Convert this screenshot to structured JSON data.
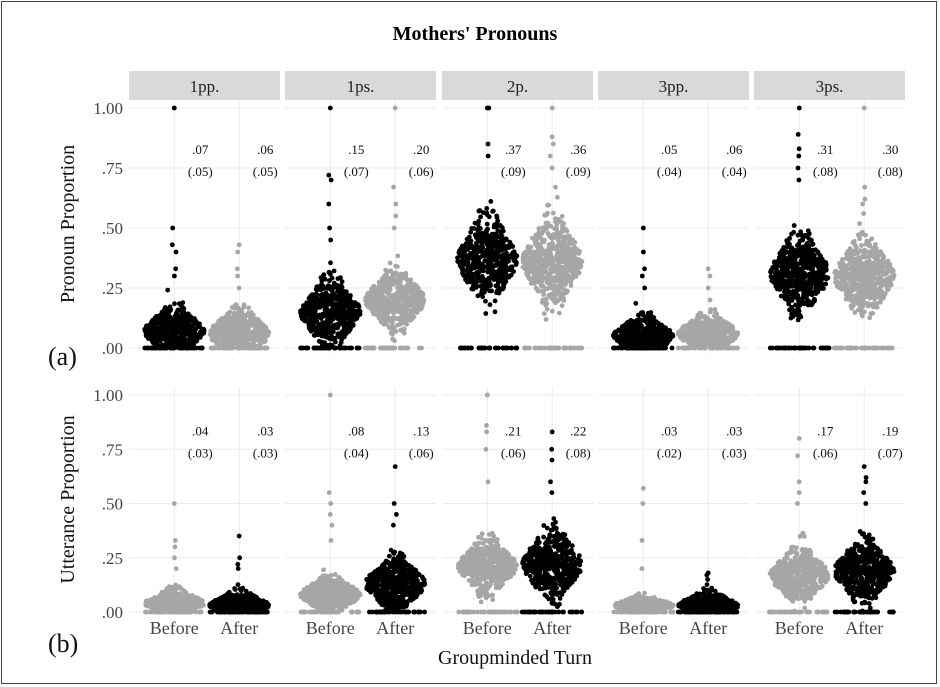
{
  "chart_data": {
    "type": "scatter",
    "title": "Mothers' Pronouns",
    "xlabel": "Groupminded Turn",
    "panels": [
      "1pp.",
      "1ps.",
      "2p.",
      "3pp.",
      "3ps."
    ],
    "groups": [
      "Before",
      "After"
    ],
    "ylim": [
      0,
      1
    ],
    "yticks": [
      0,
      0.25,
      0.5,
      0.75,
      1
    ],
    "ytick_labels": [
      ".00",
      ".25",
      ".50",
      ".75",
      "1.00"
    ],
    "grid": true,
    "rows": [
      {
        "tag": "(a)",
        "ylabel": "Pronoun Proportion",
        "colors": {
          "Before": "#000000",
          "After": "#a6a6a6"
        },
        "stats": [
          {
            "panel": "1pp.",
            "Before": {
              "mean": ".07",
              "sd": "(.05)",
              "max": 1.0,
              "outliers": [
                0.5,
                0.43,
                0.4,
                0.33,
                0.3
              ]
            },
            "After": {
              "mean": ".06",
              "sd": "(.05)",
              "max": 0.43,
              "outliers": [
                0.4,
                0.33,
                0.3,
                0.25
              ]
            }
          },
          {
            "panel": "1ps.",
            "Before": {
              "mean": ".15",
              "sd": "(.07)",
              "max": 1.0,
              "outliers": [
                0.72,
                0.7,
                0.6,
                0.5,
                0.45
              ]
            },
            "After": {
              "mean": ".20",
              "sd": "(.06)",
              "max": 1.0,
              "outliers": [
                0.67,
                0.6,
                0.55,
                0.5
              ]
            }
          },
          {
            "panel": "2p.",
            "Before": {
              "mean": ".37",
              "sd": "(.09)",
              "max": 1.0,
              "outliers": [
                1.0,
                0.85,
                0.8
              ]
            },
            "After": {
              "mean": ".36",
              "sd": "(.09)",
              "max": 1.0,
              "outliers": [
                0.88,
                0.85,
                0.8,
                0.75
              ]
            }
          },
          {
            "panel": "3pp.",
            "Before": {
              "mean": ".05",
              "sd": "(.04)",
              "max": 0.5,
              "outliers": [
                0.4,
                0.33,
                0.3,
                0.25
              ]
            },
            "After": {
              "mean": ".06",
              "sd": "(.04)",
              "max": 0.33,
              "outliers": [
                0.3,
                0.25,
                0.2
              ]
            }
          },
          {
            "panel": "3ps.",
            "Before": {
              "mean": ".31",
              "sd": "(.08)",
              "max": 1.0,
              "outliers": [
                0.89,
                0.83,
                0.8,
                0.75,
                0.7
              ]
            },
            "After": {
              "mean": ".30",
              "sd": "(.08)",
              "max": 1.0,
              "outliers": [
                0.67,
                0.62,
                0.6,
                0.56
              ]
            }
          }
        ]
      },
      {
        "tag": "(b)",
        "ylabel": "Utterance Proportion",
        "colors": {
          "Before": "#a6a6a6",
          "After": "#000000"
        },
        "stats": [
          {
            "panel": "1pp.",
            "Before": {
              "mean": ".04",
              "sd": "(.03)",
              "max": 0.5,
              "outliers": [
                0.33,
                0.3,
                0.25,
                0.2
              ]
            },
            "After": {
              "mean": ".03",
              "sd": "(.03)",
              "max": 0.35,
              "outliers": [
                0.25,
                0.22,
                0.2
              ]
            }
          },
          {
            "panel": "1ps.",
            "Before": {
              "mean": ".08",
              "sd": "(.04)",
              "max": 1.0,
              "outliers": [
                0.55,
                0.5,
                0.45,
                0.4,
                0.33
              ]
            },
            "After": {
              "mean": ".13",
              "sd": "(.06)",
              "max": 0.67,
              "outliers": [
                0.5,
                0.45,
                0.4
              ]
            }
          },
          {
            "panel": "2p.",
            "Before": {
              "mean": ".21",
              "sd": "(.06)",
              "max": 1.0,
              "outliers": [
                0.86,
                0.83,
                0.75,
                0.6
              ]
            },
            "After": {
              "mean": ".22",
              "sd": "(.08)",
              "max": 0.83,
              "outliers": [
                0.75,
                0.7,
                0.6,
                0.55
              ]
            }
          },
          {
            "panel": "3pp.",
            "Before": {
              "mean": ".03",
              "sd": "(.02)",
              "max": 0.57,
              "outliers": [
                0.5,
                0.33,
                0.2
              ]
            },
            "After": {
              "mean": ".03",
              "sd": "(.03)",
              "max": 0.18,
              "outliers": [
                0.17,
                0.15
              ]
            }
          },
          {
            "panel": "3ps.",
            "Before": {
              "mean": ".17",
              "sd": "(.06)",
              "max": 0.8,
              "outliers": [
                0.72,
                0.6,
                0.55,
                0.5
              ]
            },
            "After": {
              "mean": ".19",
              "sd": "(.07)",
              "max": 0.67,
              "outliers": [
                0.62,
                0.6,
                0.55,
                0.5
              ]
            }
          }
        ]
      }
    ]
  }
}
